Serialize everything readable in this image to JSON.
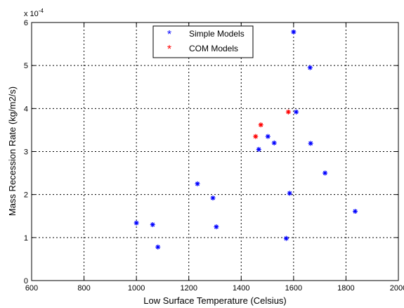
{
  "chart_data": {
    "type": "scatter",
    "title": "",
    "xlabel": "Low Surface Temperature (Celsius)",
    "ylabel": "Mass Recession Rate (kg/m2/s)",
    "y_exponent_label": "x 10",
    "y_exponent_power": "-4",
    "xlim": [
      600,
      2000
    ],
    "ylim": [
      0,
      6
    ],
    "xticks": [
      "600",
      "800",
      "1000",
      "1200",
      "1400",
      "1600",
      "1800",
      "2000"
    ],
    "yticks": [
      "0",
      "1",
      "2",
      "3",
      "4",
      "5",
      "6"
    ],
    "grid": true,
    "grid_style": "dotted",
    "legend_position": "top-center",
    "series": [
      {
        "name": "Simple Models",
        "color": "#0000ff",
        "marker": "asterisk",
        "points": [
          [
            1000,
            1.34
          ],
          [
            1062,
            1.3
          ],
          [
            1082,
            0.78
          ],
          [
            1233,
            2.25
          ],
          [
            1292,
            1.92
          ],
          [
            1305,
            1.25
          ],
          [
            1467,
            3.05
          ],
          [
            1502,
            3.35
          ],
          [
            1526,
            3.2
          ],
          [
            1572,
            0.98
          ],
          [
            1585,
            2.03
          ],
          [
            1600,
            5.78
          ],
          [
            1610,
            3.92
          ],
          [
            1663,
            4.95
          ],
          [
            1665,
            3.19
          ],
          [
            1720,
            2.5
          ],
          [
            1835,
            1.61
          ]
        ]
      },
      {
        "name": "COM Models",
        "color": "#ff0000",
        "marker": "asterisk",
        "points": [
          [
            1455,
            3.35
          ],
          [
            1475,
            3.62
          ],
          [
            1580,
            3.92
          ]
        ]
      }
    ]
  }
}
